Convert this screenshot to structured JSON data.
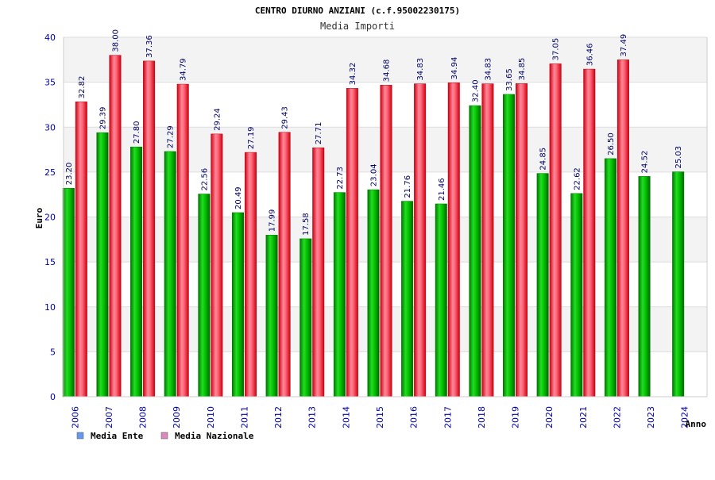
{
  "chart_data": {
    "type": "bar",
    "title": "CENTRO DIURNO ANZIANI (c.f.95002230175)",
    "subtitle": "Media Importi",
    "ylabel": "Euro",
    "xlabel": "Anno",
    "ylim": [
      0,
      40
    ],
    "yticks": [
      0,
      5,
      10,
      15,
      20,
      25,
      30,
      35,
      40
    ],
    "grid": true,
    "legend_position": "bottom-left",
    "categories": [
      "2006",
      "2007",
      "2008",
      "2009",
      "2010",
      "2011",
      "2012",
      "2013",
      "2014",
      "2015",
      "2016",
      "2017",
      "2018",
      "2019",
      "2020",
      "2021",
      "2022",
      "2023",
      "2024"
    ],
    "series": [
      {
        "name": "Media Ente",
        "legend_color": "#6699ee",
        "bar_color": "#00aa00",
        "values": [
          23.2,
          29.39,
          27.8,
          27.29,
          22.56,
          20.49,
          17.99,
          17.58,
          22.73,
          23.04,
          21.76,
          21.46,
          32.4,
          33.65,
          24.85,
          22.62,
          26.5,
          24.52,
          25.03
        ],
        "labels": [
          "23.20",
          "29.39",
          "27.80",
          "27.29",
          "22.56",
          "20.49",
          "17.99",
          "17.58",
          "22.73",
          "23.04",
          "21.76",
          "21.46",
          "32.40",
          "33.65",
          "24.85",
          "22.62",
          "26.50",
          "24.52",
          "25.03"
        ]
      },
      {
        "name": "Media Nazionale",
        "legend_color": "#dd88bb",
        "bar_color": "#ee2233",
        "values": [
          32.82,
          38.0,
          37.36,
          34.79,
          29.24,
          27.19,
          29.43,
          27.71,
          34.32,
          34.68,
          34.83,
          34.94,
          34.83,
          34.85,
          37.05,
          36.46,
          37.49,
          null,
          null
        ],
        "labels": [
          "32.82",
          "38.00",
          "37.36",
          "34.79",
          "29.24",
          "27.19",
          "29.43",
          "27.71",
          "34.32",
          "34.68",
          "34.83",
          "34.94",
          "34.83",
          "34.85",
          "37.05",
          "36.46",
          "37.49",
          "",
          ""
        ]
      }
    ]
  }
}
